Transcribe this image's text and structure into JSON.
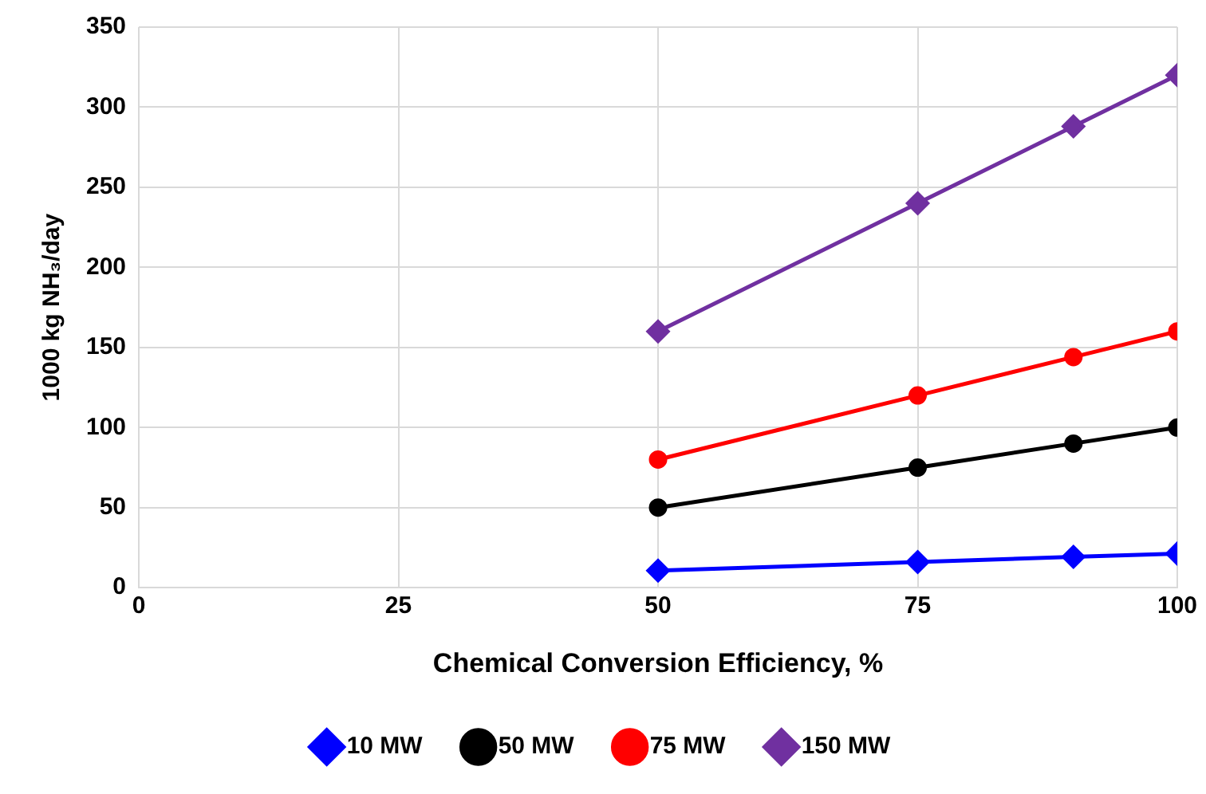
{
  "chart_data": {
    "type": "line",
    "xlabel": "Chemical Conversion Efficiency, %",
    "ylabel": "1000 kg NH₃/day",
    "x": [
      50,
      75,
      90,
      100
    ],
    "series": [
      {
        "name": "10 MW",
        "color": "#0000ff",
        "marker": "diamond",
        "values": [
          10.7,
          16,
          19.3,
          21.3
        ]
      },
      {
        "name": "50 MW",
        "color": "#000000",
        "marker": "circle",
        "values": [
          50,
          75,
          90,
          100
        ]
      },
      {
        "name": "75 MW",
        "color": "#ff0000",
        "marker": "circle",
        "values": [
          80,
          120,
          144,
          160
        ]
      },
      {
        "name": "150 MW",
        "color": "#7030a0",
        "marker": "diamond",
        "values": [
          160,
          240,
          288,
          320
        ]
      }
    ],
    "xlim": [
      0,
      100
    ],
    "xticks": [
      0,
      25,
      50,
      75,
      100
    ],
    "ylim": [
      0,
      350
    ],
    "yticks": [
      0,
      50,
      100,
      150,
      200,
      250,
      300,
      350
    ],
    "grid": true,
    "legend": "bottom",
    "line_style": "solid"
  }
}
